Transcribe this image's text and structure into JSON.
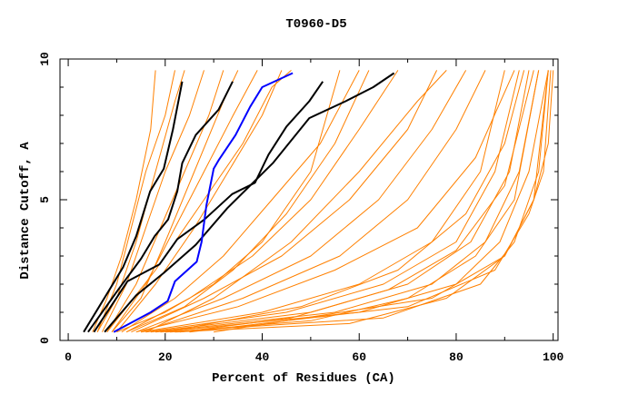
{
  "chart_data": {
    "type": "line",
    "title": "T0960-D5",
    "xlabel": "Percent of Residues (CA)",
    "ylabel": "Distance Cutoff, A",
    "xlim": [
      -1.7,
      101
    ],
    "ylim": [
      0,
      10
    ],
    "xticks": [
      0,
      20,
      40,
      60,
      80,
      100
    ],
    "yticks": [
      0,
      5,
      10
    ],
    "grid": false,
    "colors": {
      "other": "#ff8000",
      "highlight": "#000000",
      "selected": "#0000ff"
    },
    "highlighted_series": [
      {
        "name": "black-1",
        "points": [
          [
            3.2,
            0.3
          ],
          [
            8.5,
            1.8
          ],
          [
            11.3,
            2.6
          ],
          [
            14,
            3.7
          ],
          [
            16.9,
            5.3
          ],
          [
            19.7,
            6.1
          ],
          [
            21.6,
            7.5
          ],
          [
            23.5,
            9.2
          ]
        ]
      },
      {
        "name": "black-2",
        "points": [
          [
            4.1,
            0.3
          ],
          [
            10.3,
            1.8
          ],
          [
            15,
            2.9
          ],
          [
            17.8,
            3.7
          ],
          [
            20.6,
            4.3
          ],
          [
            22.5,
            5.3
          ],
          [
            23.5,
            6.3
          ],
          [
            26.3,
            7.3
          ],
          [
            31,
            8.2
          ],
          [
            33.9,
            9.2
          ]
        ]
      },
      {
        "name": "black-3",
        "points": [
          [
            5.3,
            0.3
          ],
          [
            12.2,
            2.1
          ],
          [
            18.8,
            2.7
          ],
          [
            22.5,
            3.6
          ],
          [
            28.1,
            4.3
          ],
          [
            33.8,
            5.2
          ],
          [
            38.5,
            5.6
          ],
          [
            41.3,
            6.6
          ],
          [
            45,
            7.6
          ],
          [
            49.7,
            8.5
          ],
          [
            52.5,
            9.2
          ]
        ]
      },
      {
        "name": "black-4",
        "points": [
          [
            7.5,
            0.3
          ],
          [
            14,
            1.6
          ],
          [
            19.7,
            2.4
          ],
          [
            26.3,
            3.4
          ],
          [
            32.8,
            4.7
          ],
          [
            42.2,
            6.3
          ],
          [
            49.7,
            7.9
          ],
          [
            57.2,
            8.5
          ],
          [
            62.9,
            9.0
          ],
          [
            67.2,
            9.5
          ]
        ]
      }
    ],
    "selected_series": {
      "name": "blue",
      "points": [
        [
          9.4,
          0.3
        ],
        [
          17,
          1
        ],
        [
          20.5,
          1.4
        ],
        [
          22,
          2.1
        ],
        [
          26.5,
          2.8
        ],
        [
          27.5,
          3.5
        ],
        [
          28.5,
          4.8
        ],
        [
          30,
          6.1
        ],
        [
          31,
          6.4
        ],
        [
          34.5,
          7.3
        ],
        [
          37.5,
          8.3
        ],
        [
          40,
          9
        ],
        [
          46.3,
          9.5
        ]
      ]
    },
    "other_series": [
      [
        [
          5,
          0.3
        ],
        [
          8,
          1.5
        ],
        [
          11,
          3
        ],
        [
          14,
          5
        ],
        [
          17,
          7.5
        ],
        [
          18,
          9.6
        ]
      ],
      [
        [
          6,
          0.3
        ],
        [
          10,
          2
        ],
        [
          13,
          4
        ],
        [
          16,
          6
        ],
        [
          20,
          8
        ],
        [
          22,
          9.6
        ]
      ],
      [
        [
          7,
          0.3
        ],
        [
          12,
          2
        ],
        [
          16,
          4
        ],
        [
          20,
          6
        ],
        [
          25,
          8
        ],
        [
          28,
          9.6
        ]
      ],
      [
        [
          8,
          0.3
        ],
        [
          14,
          2
        ],
        [
          19,
          4
        ],
        [
          24,
          6
        ],
        [
          29,
          8
        ],
        [
          32,
          9.6
        ]
      ],
      [
        [
          9,
          0.3
        ],
        [
          16,
          2
        ],
        [
          22,
          4
        ],
        [
          28,
          6
        ],
        [
          34,
          8
        ],
        [
          39,
          9.6
        ]
      ],
      [
        [
          10,
          0.3
        ],
        [
          18,
          2
        ],
        [
          26,
          4
        ],
        [
          33,
          6
        ],
        [
          40,
          8
        ],
        [
          44,
          9.6
        ]
      ],
      [
        [
          11,
          0.3
        ],
        [
          22,
          1.5
        ],
        [
          32,
          3
        ],
        [
          42,
          5
        ],
        [
          52,
          7
        ],
        [
          60,
          9.6
        ]
      ],
      [
        [
          12,
          0.3
        ],
        [
          25,
          1.5
        ],
        [
          38,
          3
        ],
        [
          50,
          5
        ],
        [
          60,
          7.5
        ],
        [
          68,
          9.6
        ]
      ],
      [
        [
          13,
          0.3
        ],
        [
          28,
          1.5
        ],
        [
          44,
          3
        ],
        [
          58,
          5
        ],
        [
          70,
          7.5
        ],
        [
          76,
          9.6
        ]
      ],
      [
        [
          14,
          0.3
        ],
        [
          32,
          1.5
        ],
        [
          50,
          3
        ],
        [
          64,
          5
        ],
        [
          75,
          7.5
        ],
        [
          82,
          9.6
        ]
      ],
      [
        [
          15,
          0.3
        ],
        [
          36,
          1.5
        ],
        [
          56,
          3
        ],
        [
          70,
          5
        ],
        [
          80,
          7.5
        ],
        [
          86,
          9.6
        ]
      ],
      [
        [
          15,
          0.3
        ],
        [
          40,
          1
        ],
        [
          60,
          2
        ],
        [
          75,
          3.5
        ],
        [
          85,
          6
        ],
        [
          90,
          9.6
        ]
      ],
      [
        [
          16,
          0.3
        ],
        [
          45,
          1
        ],
        [
          65,
          2
        ],
        [
          80,
          3.5
        ],
        [
          88,
          6
        ],
        [
          93,
          9.6
        ]
      ],
      [
        [
          17,
          0.3
        ],
        [
          50,
          1
        ],
        [
          70,
          2
        ],
        [
          83,
          3.5
        ],
        [
          91,
          6
        ],
        [
          95,
          9.6
        ]
      ],
      [
        [
          18,
          0.3
        ],
        [
          55,
          1
        ],
        [
          75,
          2
        ],
        [
          86,
          3.5
        ],
        [
          93,
          6
        ],
        [
          97,
          9.6
        ]
      ],
      [
        [
          19,
          0.3
        ],
        [
          60,
          1
        ],
        [
          80,
          2
        ],
        [
          89,
          3.5
        ],
        [
          95,
          6
        ],
        [
          99,
          9.6
        ]
      ],
      [
        [
          20,
          0.3
        ],
        [
          65,
          0.8
        ],
        [
          85,
          2
        ],
        [
          92,
          3.5
        ],
        [
          97,
          6
        ],
        [
          99,
          9.6
        ]
      ],
      [
        [
          22,
          0.3
        ],
        [
          58,
          0.6
        ],
        [
          78,
          1.5
        ],
        [
          90,
          3
        ],
        [
          96,
          5
        ],
        [
          99,
          9.6
        ]
      ],
      [
        [
          25,
          0.3
        ],
        [
          70,
          1.2
        ],
        [
          88,
          2.5
        ],
        [
          95,
          4.5
        ],
        [
          98,
          6
        ],
        [
          99.5,
          9.6
        ]
      ],
      [
        [
          21,
          0.3
        ],
        [
          50,
          0.7
        ],
        [
          70,
          1.5
        ],
        [
          84,
          3
        ],
        [
          92,
          5
        ],
        [
          97,
          9.6
        ]
      ],
      [
        [
          23,
          0.3
        ],
        [
          46,
          0.8
        ],
        [
          66,
          1.8
        ],
        [
          80,
          3.2
        ],
        [
          90,
          5.5
        ],
        [
          96,
          9.6
        ]
      ],
      [
        [
          14,
          0.3
        ],
        [
          35,
          1.2
        ],
        [
          55,
          2.5
        ],
        [
          72,
          4
        ],
        [
          84,
          6.5
        ],
        [
          92,
          9.6
        ]
      ],
      [
        [
          10,
          0.3
        ],
        [
          20,
          1
        ],
        [
          30,
          2
        ],
        [
          40,
          3.5
        ],
        [
          50,
          6
        ],
        [
          56,
          9.6
        ]
      ],
      [
        [
          12,
          0.3
        ],
        [
          24,
          1.2
        ],
        [
          34,
          2.5
        ],
        [
          45,
          4.5
        ],
        [
          55,
          7
        ],
        [
          62,
          9.6
        ]
      ],
      [
        [
          6,
          0.3
        ],
        [
          10,
          1.5
        ],
        [
          14,
          3.5
        ],
        [
          18,
          6
        ],
        [
          22,
          8.5
        ],
        [
          24,
          9.6
        ]
      ],
      [
        [
          9,
          0.3
        ],
        [
          15,
          1.5
        ],
        [
          20,
          3.5
        ],
        [
          26,
          6
        ],
        [
          32,
          8.5
        ],
        [
          35,
          9.6
        ]
      ],
      [
        [
          16,
          0.3
        ],
        [
          30,
          1.5
        ],
        [
          46,
          3.5
        ],
        [
          60,
          6
        ],
        [
          72,
          8.5
        ],
        [
          78,
          9.6
        ]
      ],
      [
        [
          20,
          0.3
        ],
        [
          48,
          1.2
        ],
        [
          68,
          2.5
        ],
        [
          82,
          4.5
        ],
        [
          90,
          7
        ],
        [
          94,
          9.6
        ]
      ],
      [
        [
          30,
          0.3
        ],
        [
          75,
          1.5
        ],
        [
          90,
          3
        ],
        [
          96,
          5
        ],
        [
          99,
          7
        ],
        [
          100,
          9.6
        ]
      ],
      [
        [
          8,
          0.3
        ],
        [
          18,
          2.5
        ],
        [
          28,
          5
        ],
        [
          36,
          7
        ],
        [
          42,
          9
        ],
        [
          46,
          9.6
        ]
      ]
    ]
  }
}
